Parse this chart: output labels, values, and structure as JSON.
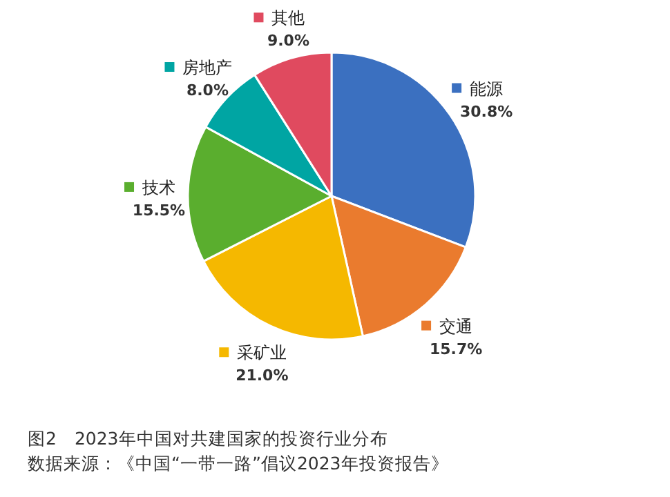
{
  "chart_data": {
    "type": "pie",
    "title": "图2　2023年中国对共建国家的投资行业分布",
    "categories": [
      "能源",
      "交通",
      "采矿业",
      "技术",
      "房地产",
      "其他"
    ],
    "values": [
      30.8,
      15.7,
      21.0,
      15.5,
      8.0,
      9.0
    ],
    "colors": [
      "#3b70c0",
      "#ea7b2e",
      "#f5b800",
      "#5aae2e",
      "#00a5a3",
      "#e04a5f"
    ],
    "value_labels": [
      "30.8%",
      "15.7%",
      "21.0%",
      "15.5%",
      "8.0%",
      "9.0%"
    ],
    "legend": "top left",
    "annotations": [
      "数据来源：《中国“一带一路”倡议2023年投资报告》"
    ]
  }
}
